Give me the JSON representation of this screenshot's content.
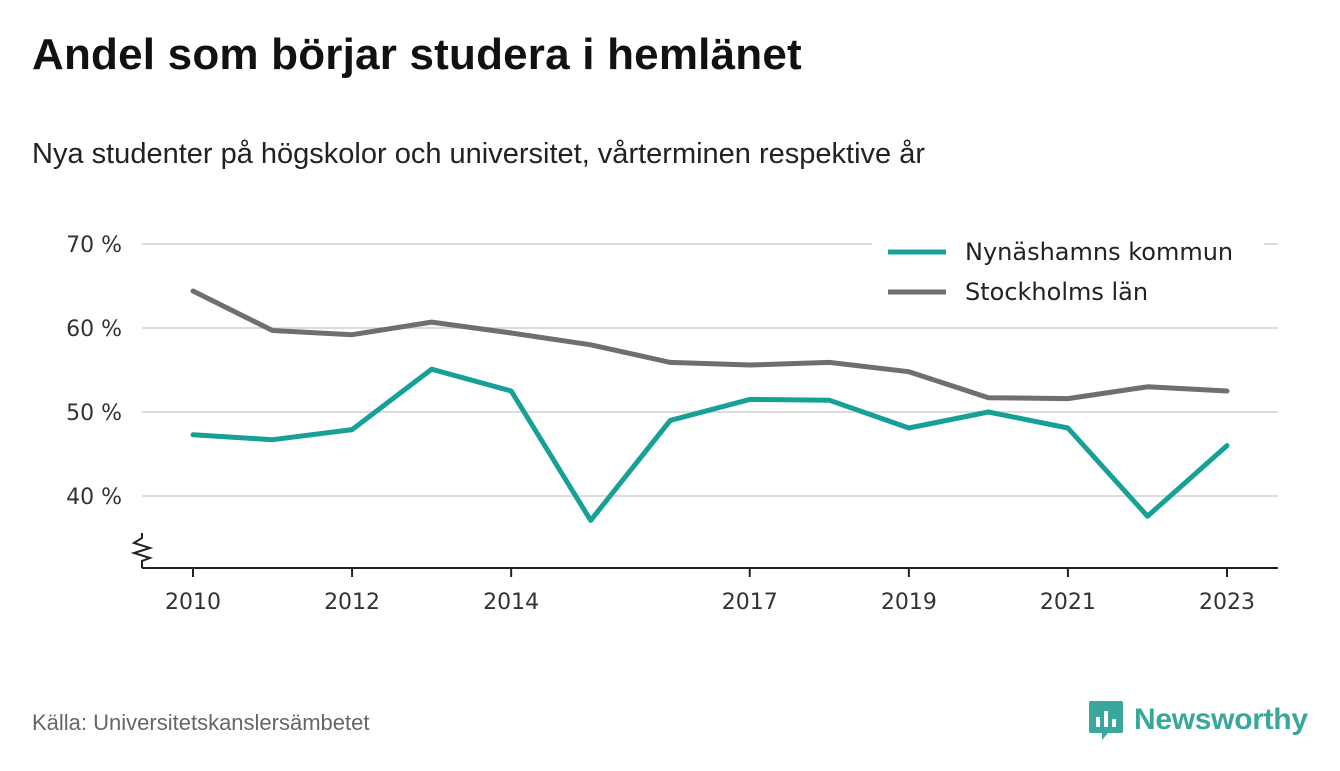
{
  "title": "Andel som börjar studera i hemlänet",
  "subtitle": "Nya studenter på högskolor och universitet, vårterminen respektive år",
  "source": "Källa: Universitetskanslersämbetet",
  "brand": {
    "name": "Newsworthy",
    "icon": "newsworthy-logo-icon",
    "color": "#3aa79c"
  },
  "chart_data": {
    "type": "line",
    "x": [
      2010,
      2011,
      2012,
      2013,
      2014,
      2015,
      2016,
      2017,
      2018,
      2019,
      2020,
      2021,
      2022,
      2023
    ],
    "x_tick_labels": [
      "2010",
      "2012",
      "2014",
      "2017",
      "2019",
      "2021",
      "2023"
    ],
    "y_tick_labels": [
      "70 %",
      "60 %",
      "50 %",
      "40 %"
    ],
    "y_ticks": [
      70,
      60,
      50,
      40
    ],
    "ylim": [
      31.5,
      70
    ],
    "axis_break": true,
    "grid": true,
    "legend_position": "top-right",
    "series": [
      {
        "name": "Nynäshamns kommun",
        "color": "#17a096",
        "values": [
          47.3,
          46.7,
          47.9,
          55.1,
          52.5,
          37.1,
          49.0,
          51.5,
          51.4,
          48.1,
          50.0,
          48.1,
          37.6,
          46.0
        ]
      },
      {
        "name": "Stockholms län",
        "color": "#6e6e74",
        "values": [
          64.4,
          59.7,
          59.2,
          60.7,
          59.4,
          58.0,
          55.9,
          55.6,
          55.9,
          54.8,
          51.7,
          51.6,
          53.0,
          52.5
        ]
      }
    ]
  }
}
